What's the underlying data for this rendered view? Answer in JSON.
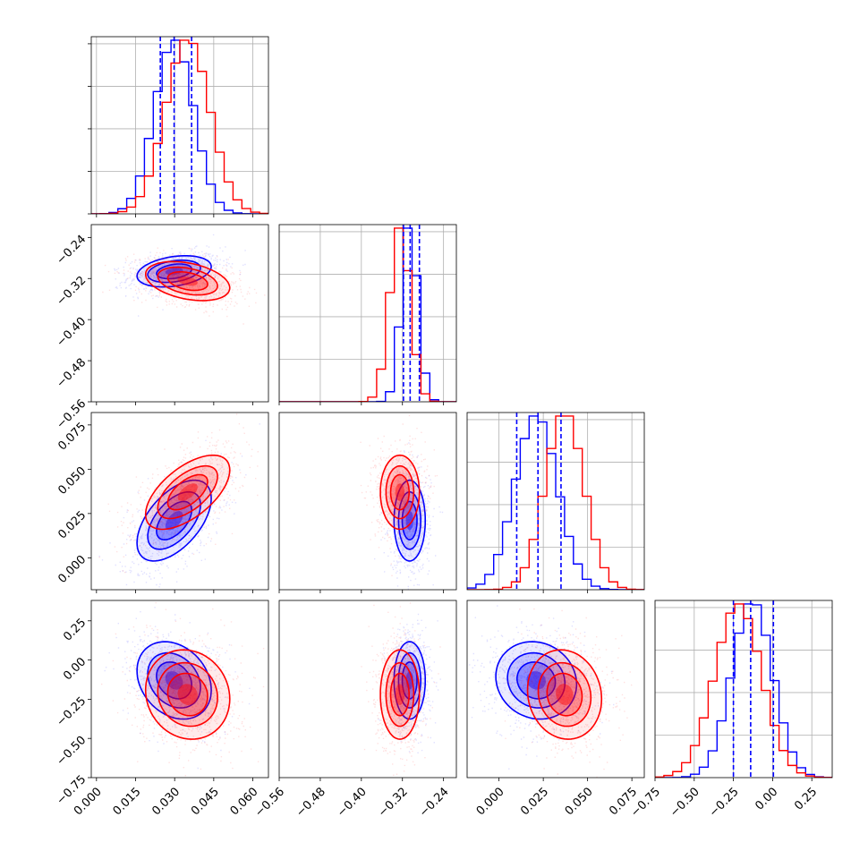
{
  "chart_data": {
    "type": "corner",
    "grid": true,
    "series": [
      {
        "color": "#0000ff",
        "quantiles": [
          [
            0.0245,
            0.0298,
            0.0365
          ],
          [
            -0.318,
            -0.305,
            -0.287
          ],
          [
            0.01,
            0.022,
            0.035
          ],
          [
            -0.25,
            -0.14,
            0.005
          ]
        ],
        "mean": [
          0.0298,
          -0.306,
          0.021,
          -0.13
        ],
        "sd": [
          0.0075,
          0.016,
          0.012,
          0.13
        ],
        "corr": [
          [
            1,
            0.3,
            0.55,
            -0.25
          ],
          [
            0.3,
            1,
            0.0,
            0.0
          ],
          [
            0.55,
            0.0,
            1,
            -0.1
          ],
          [
            -0.25,
            0.0,
            -0.1,
            1
          ]
        ]
      },
      {
        "color": "#ff0000",
        "mean": [
          0.035,
          -0.325,
          0.037,
          -0.22
        ],
        "sd": [
          0.0085,
          0.02,
          0.011,
          0.15
        ],
        "corr": [
          [
            1,
            -0.35,
            0.6,
            -0.1
          ],
          [
            -0.35,
            1,
            0.0,
            0.0
          ],
          [
            0.6,
            0.0,
            1,
            -0.1
          ],
          [
            -0.1,
            0.0,
            -0.1,
            1
          ]
        ]
      }
    ],
    "axes": [
      {
        "range": [
          -0.002,
          0.066
        ],
        "ticks": [
          0.0,
          0.015,
          0.03,
          0.045,
          0.06
        ],
        "tick_labels": [
          "0.000",
          "0.015",
          "0.030",
          "0.045",
          "0.060"
        ]
      },
      {
        "range": [
          -0.56,
          -0.215
        ],
        "ticks": [
          -0.56,
          -0.48,
          -0.4,
          -0.32,
          -0.24
        ],
        "tick_labels": [
          "−0.56",
          "−0.48",
          "−0.40",
          "−0.32",
          "−0.24"
        ]
      },
      {
        "range": [
          -0.018,
          0.082
        ],
        "ticks": [
          0.0,
          0.025,
          0.05,
          0.075
        ],
        "tick_labels": [
          "0.000",
          "0.025",
          "0.050",
          "0.075"
        ]
      },
      {
        "range": [
          -0.75,
          0.38
        ],
        "ticks": [
          -0.75,
          -0.5,
          -0.25,
          0.0,
          0.25
        ],
        "tick_labels": [
          "−0.75",
          "−0.50",
          "−0.25",
          "0.00",
          "0.25"
        ]
      }
    ]
  }
}
